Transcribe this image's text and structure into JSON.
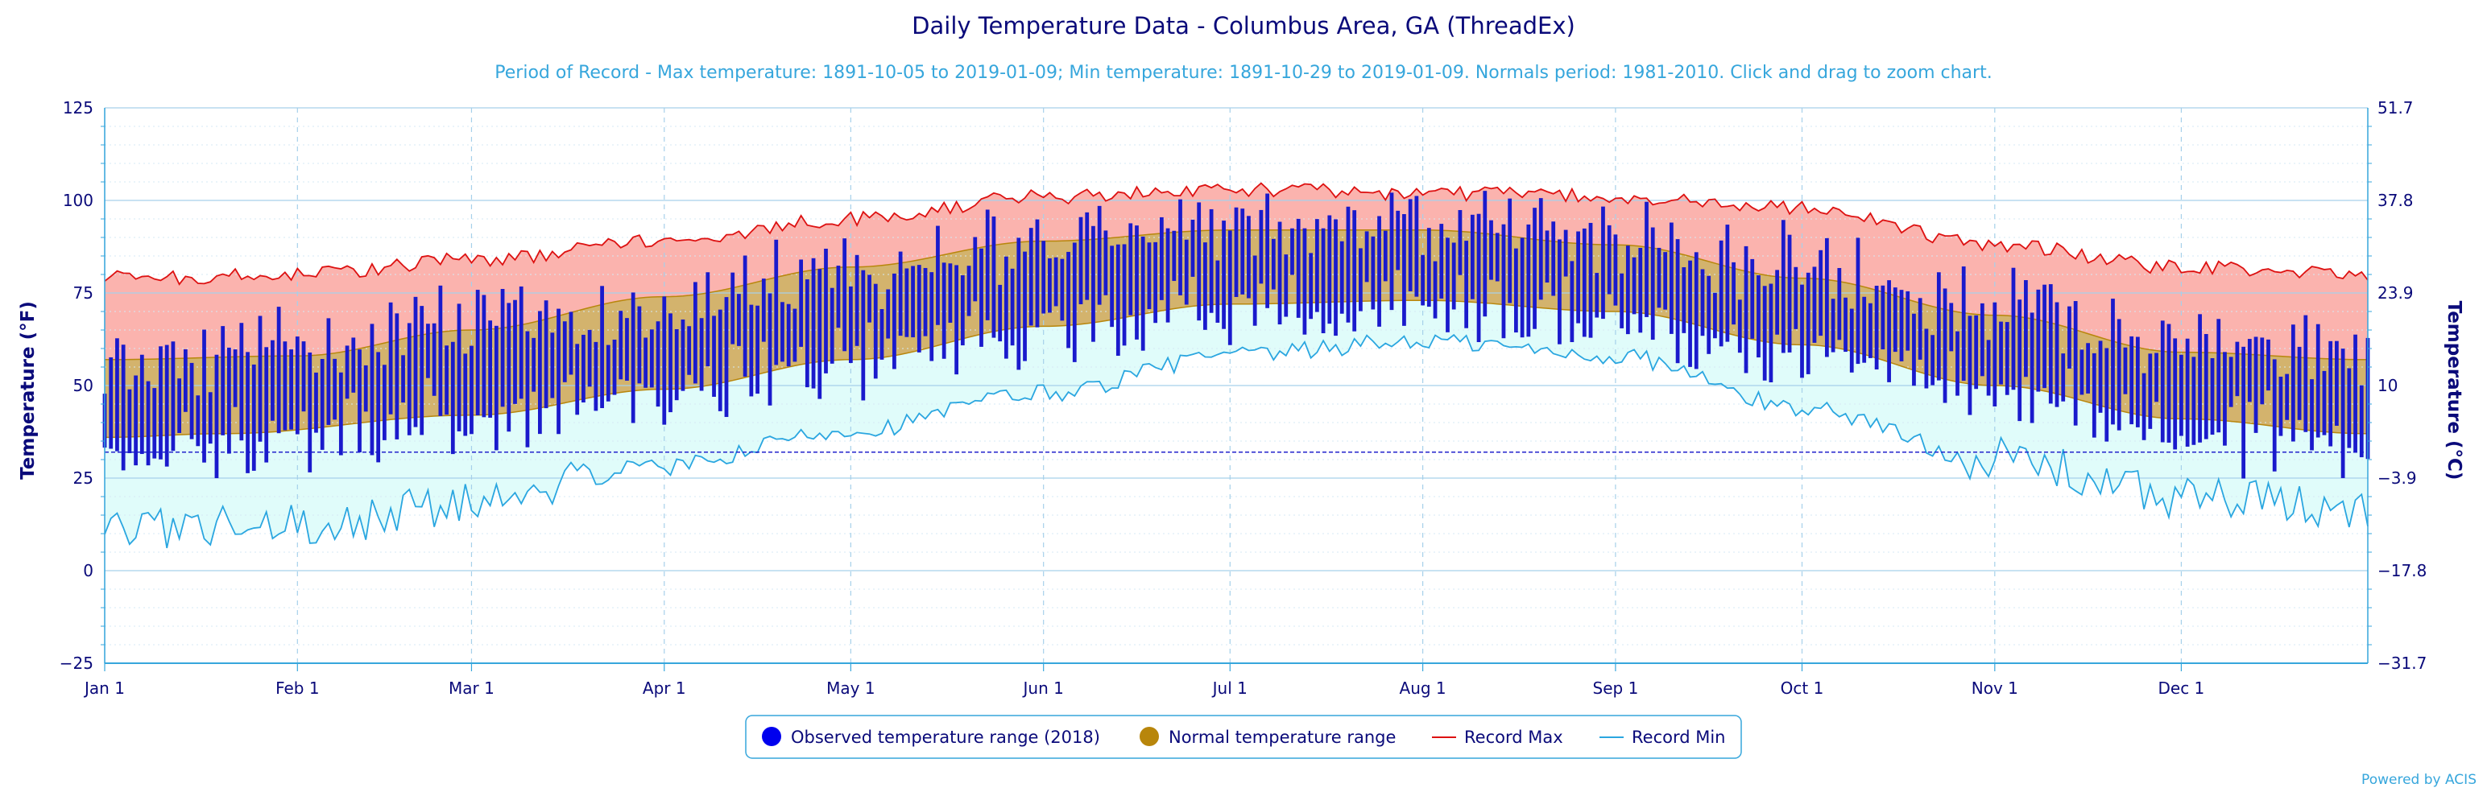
{
  "chart_data": {
    "type": "bar",
    "title": "Daily Temperature Data - Columbus Area, GA (ThreadEx)",
    "subtitle": "Period of Record - Max temperature: 1891-10-05 to 2019-01-09; Min temperature: 1891-10-29 to 2019-01-09. Normals period: 1981-2010. Click and drag to zoom chart.",
    "ylabel_left": "Temperature (°F)",
    "ylabel_right": "Temperature (°C)",
    "y_range_f": [
      -25,
      125
    ],
    "y_ticks_f": [
      "125",
      "100",
      "75",
      "50",
      "25",
      "0",
      "−25"
    ],
    "y_ticks_c": [
      "51.7",
      "37.8",
      "23.9",
      "10",
      "−3.9",
      "−17.8",
      "−31.7"
    ],
    "x_range_days": [
      1,
      365
    ],
    "x_ticks": [
      {
        "label": "Jan 1",
        "day": 1
      },
      {
        "label": "Feb 1",
        "day": 32
      },
      {
        "label": "Mar 1",
        "day": 60
      },
      {
        "label": "Apr 1",
        "day": 91
      },
      {
        "label": "May 1",
        "day": 121
      },
      {
        "label": "Jun 1",
        "day": 152
      },
      {
        "label": "Jul 1",
        "day": 182
      },
      {
        "label": "Aug 1",
        "day": 213
      },
      {
        "label": "Sep 1",
        "day": 244
      },
      {
        "label": "Oct 1",
        "day": 274
      },
      {
        "label": "Nov 1",
        "day": 305
      },
      {
        "label": "Dec 1",
        "day": 335
      }
    ],
    "freezing_line_f": 32,
    "grid": true,
    "legend_position": "bottom-center",
    "series": [
      {
        "name": "Observed temperature range (2018)",
        "type": "columnrange",
        "color": "#1a1acc",
        "note": "daily [low, high] ranges, 2018"
      },
      {
        "name": "Normal temperature range",
        "type": "arearange",
        "color": "#b8860b",
        "min_anchors": [
          [
            1,
            36
          ],
          [
            20,
            37
          ],
          [
            60,
            42
          ],
          [
            91,
            49
          ],
          [
            121,
            57
          ],
          [
            152,
            66
          ],
          [
            182,
            72
          ],
          [
            213,
            73
          ],
          [
            244,
            70
          ],
          [
            274,
            61
          ],
          [
            305,
            50
          ],
          [
            335,
            41
          ],
          [
            365,
            37
          ]
        ],
        "max_anchors": [
          [
            1,
            57
          ],
          [
            32,
            58
          ],
          [
            60,
            65
          ],
          [
            91,
            74
          ],
          [
            121,
            82
          ],
          [
            152,
            89
          ],
          [
            182,
            92
          ],
          [
            213,
            92
          ],
          [
            244,
            88
          ],
          [
            274,
            79
          ],
          [
            305,
            69
          ],
          [
            335,
            59
          ],
          [
            365,
            57
          ]
        ]
      },
      {
        "name": "Record Max",
        "type": "line",
        "color": "#dd1111",
        "anchors": [
          [
            1,
            79
          ],
          [
            32,
            80
          ],
          [
            60,
            84
          ],
          [
            91,
            89
          ],
          [
            121,
            95
          ],
          [
            152,
            101
          ],
          [
            182,
            103
          ],
          [
            213,
            102
          ],
          [
            244,
            101
          ],
          [
            274,
            98
          ],
          [
            305,
            88
          ],
          [
            335,
            82
          ],
          [
            365,
            80
          ]
        ]
      },
      {
        "name": "Record Min",
        "type": "line",
        "color": "#2aa6e0",
        "anchors": [
          [
            1,
            12
          ],
          [
            32,
            12
          ],
          [
            60,
            18
          ],
          [
            91,
            28
          ],
          [
            121,
            38
          ],
          [
            152,
            48
          ],
          [
            182,
            58
          ],
          [
            213,
            62
          ],
          [
            244,
            58
          ],
          [
            274,
            44
          ],
          [
            305,
            30
          ],
          [
            335,
            20
          ],
          [
            365,
            16
          ]
        ]
      }
    ]
  },
  "legend": {
    "observed": "Observed temperature range (2018)",
    "normal": "Normal temperature range",
    "record_max": "Record Max",
    "record_min": "Record Min"
  },
  "credit": "Powered by ACIS",
  "colors": {
    "observed": "#1a1acc",
    "normal_fill": "#c49a3c",
    "normal_stroke": "#b8860b",
    "record_max_fill": "#fbb3ae",
    "record_max_line": "#dd1111",
    "record_min_fill": "#e0fcfa",
    "record_min_line": "#2aa6e0",
    "axis": "#36a6dc",
    "text": "#0a0a7a"
  }
}
